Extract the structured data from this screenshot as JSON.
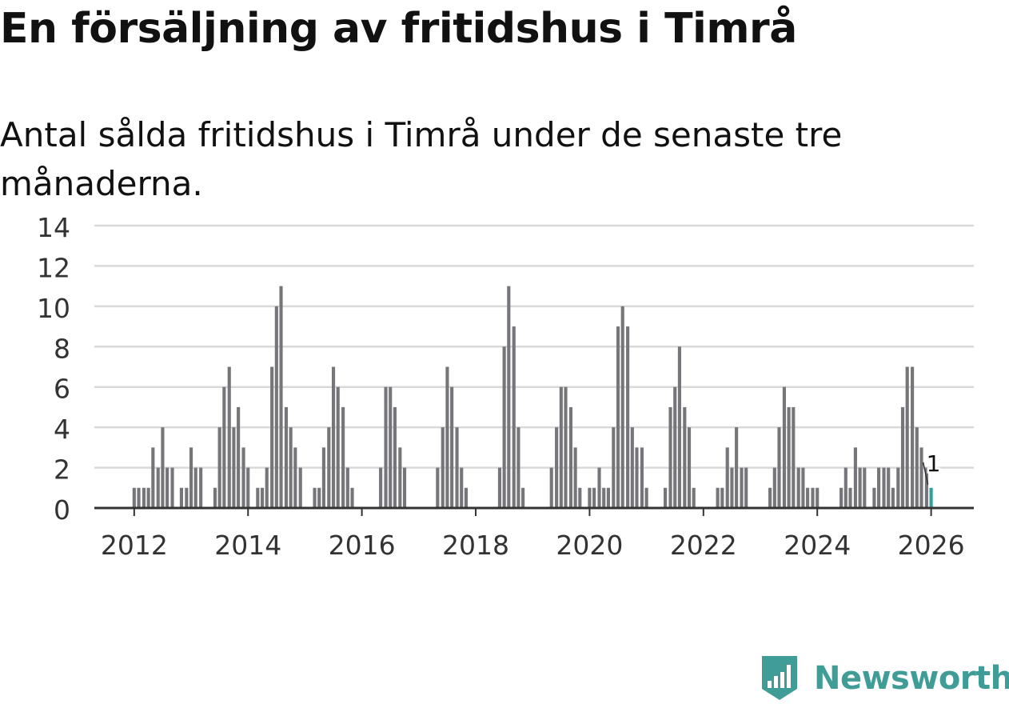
{
  "title": "En försäljning av fritidshus i Timrå",
  "subtitle": "Antal sålda fritidshus i Timrå under de senaste tre månaderna.",
  "brand": "Newsworthy",
  "colors": {
    "bar": "#76757a",
    "highlight": "#2fa09a",
    "grid": "#d9d9d9",
    "axis": "#333333",
    "brand": "#3f9c96"
  },
  "chart_data": {
    "type": "bar",
    "title": "En försäljning av fritidshus i Timrå",
    "ylabel": "",
    "xlabel": "",
    "ylim": [
      0,
      14
    ],
    "yticks": [
      0,
      2,
      4,
      6,
      8,
      10,
      12,
      14
    ],
    "xticks": [
      2012,
      2014,
      2016,
      2018,
      2020,
      2022,
      2024,
      2026
    ],
    "x_range": [
      2011.3,
      2026.75
    ],
    "bar_width_years": 0.058,
    "annotation": {
      "label": "1",
      "x": 2026.0,
      "value": 1
    },
    "highlight_x": 2026.0,
    "x": [
      2012.0,
      2012.08,
      2012.17,
      2012.25,
      2012.33,
      2012.42,
      2012.5,
      2012.58,
      2012.67,
      2012.75,
      2012.83,
      2012.92,
      2013.0,
      2013.08,
      2013.17,
      2013.25,
      2013.42,
      2013.5,
      2013.58,
      2013.67,
      2013.75,
      2013.83,
      2013.92,
      2014.0,
      2014.08,
      2014.17,
      2014.25,
      2014.33,
      2014.42,
      2014.5,
      2014.58,
      2014.67,
      2014.75,
      2014.83,
      2014.92,
      2015.17,
      2015.25,
      2015.33,
      2015.42,
      2015.5,
      2015.58,
      2015.67,
      2015.75,
      2015.83,
      2016.33,
      2016.42,
      2016.5,
      2016.58,
      2016.67,
      2016.75,
      2016.83,
      2017.33,
      2017.42,
      2017.5,
      2017.58,
      2017.67,
      2017.75,
      2017.83,
      2018.42,
      2018.5,
      2018.58,
      2018.67,
      2018.75,
      2018.83,
      2019.33,
      2019.42,
      2019.5,
      2019.58,
      2019.67,
      2019.75,
      2019.83,
      2020.0,
      2020.08,
      2020.17,
      2020.25,
      2020.33,
      2020.42,
      2020.5,
      2020.58,
      2020.67,
      2020.75,
      2020.83,
      2020.92,
      2021.0,
      2021.33,
      2021.42,
      2021.5,
      2021.58,
      2021.67,
      2021.75,
      2021.83,
      2022.25,
      2022.33,
      2022.42,
      2022.5,
      2022.58,
      2022.67,
      2022.75,
      2023.17,
      2023.25,
      2023.33,
      2023.42,
      2023.5,
      2023.58,
      2023.67,
      2023.75,
      2023.83,
      2023.92,
      2024.0,
      2024.42,
      2024.5,
      2024.58,
      2024.67,
      2024.75,
      2024.83,
      2025.0,
      2025.08,
      2025.17,
      2025.25,
      2025.33,
      2025.42,
      2025.5,
      2025.58,
      2025.67,
      2025.75,
      2025.83,
      2025.92,
      2026.0
    ],
    "values": [
      1,
      1,
      1,
      1,
      3,
      2,
      4,
      2,
      2,
      0,
      1,
      1,
      3,
      2,
      2,
      0,
      1,
      4,
      6,
      7,
      4,
      5,
      3,
      2,
      0,
      1,
      1,
      2,
      7,
      10,
      11,
      5,
      4,
      3,
      2,
      1,
      1,
      3,
      4,
      7,
      6,
      5,
      2,
      1,
      2,
      6,
      6,
      5,
      3,
      2,
      0,
      2,
      4,
      7,
      6,
      4,
      2,
      1,
      2,
      8,
      11,
      9,
      4,
      1,
      2,
      4,
      6,
      6,
      5,
      3,
      1,
      1,
      1,
      2,
      1,
      1,
      4,
      9,
      10,
      9,
      4,
      3,
      3,
      1,
      1,
      5,
      6,
      8,
      5,
      4,
      1,
      1,
      1,
      3,
      2,
      4,
      2,
      2,
      1,
      2,
      4,
      6,
      5,
      5,
      2,
      2,
      1,
      1,
      1,
      1,
      2,
      1,
      3,
      2,
      2,
      1,
      2,
      2,
      2,
      1,
      2,
      5,
      7,
      7,
      4,
      3,
      2,
      1
    ]
  }
}
